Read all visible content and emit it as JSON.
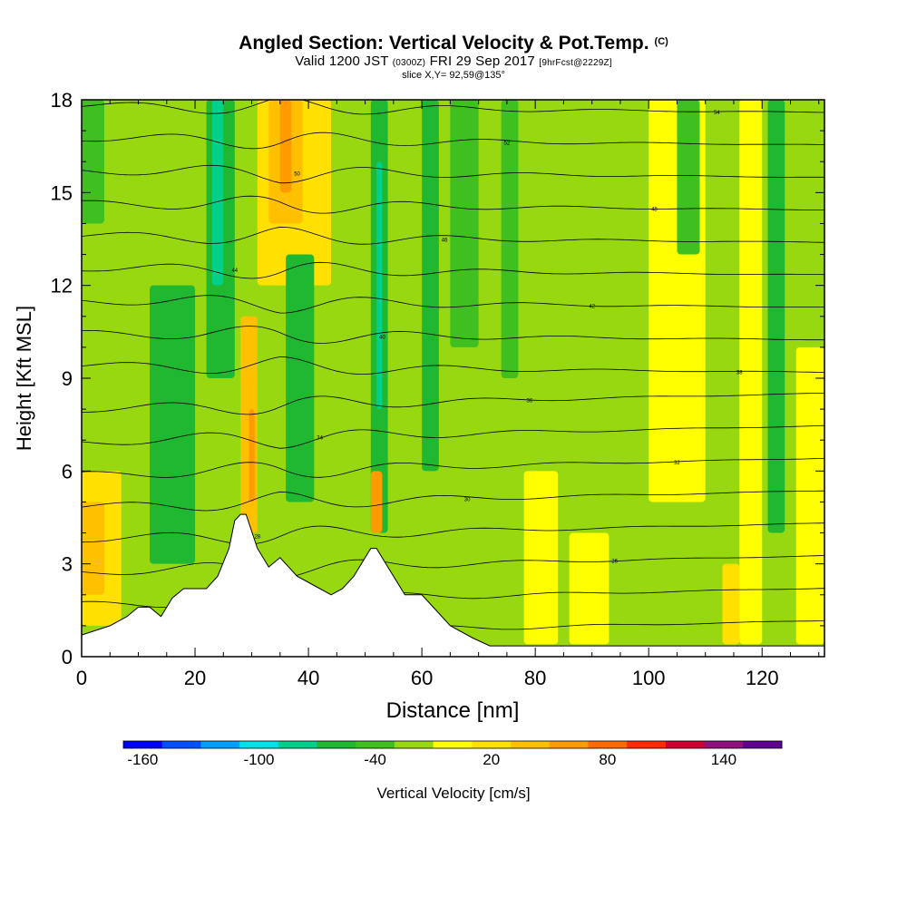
{
  "header": {
    "title": "Angled Section: Vertical Velocity & Pot.Temp.",
    "title_suffix": "(C)",
    "valid_prefix": "Valid 1200 JST",
    "valid_utc": "(0300Z)",
    "valid_date": "FRI 29 Sep 2017",
    "forecast": "[9hrFcst@2229Z]",
    "slice": "slice X,Y= 92,59@135°"
  },
  "chart_data": {
    "type": "heatmap",
    "xlabel": "Distance [nm]",
    "ylabel": "Height [Kft MSL]",
    "xlim": [
      0,
      131
    ],
    "ylim": [
      0,
      18
    ],
    "x_ticks": [
      "0",
      "20",
      "40",
      "60",
      "80",
      "100",
      "120"
    ],
    "y_ticks": [
      "0",
      "3",
      "6",
      "9",
      "12",
      "15",
      "18"
    ],
    "colorbar": {
      "label": "Vertical Velocity [cm/s]",
      "range": [
        -170,
        170
      ],
      "step": 20,
      "tick_labels": [
        "-160",
        "-100",
        "-40",
        "20",
        "80",
        "140"
      ],
      "tick_values": [
        -160,
        -100,
        -40,
        20,
        80,
        140
      ],
      "colors": [
        "#0000ff",
        "#0050ff",
        "#00a0ff",
        "#00e0e8",
        "#00d08a",
        "#20b830",
        "#40c020",
        "#98d810",
        "#ffff00",
        "#ffe000",
        "#ffc000",
        "#ff9a00",
        "#ff6a00",
        "#ff2a00",
        "#d00030",
        "#901080",
        "#600090"
      ]
    },
    "terrain_kft": [
      [
        0,
        0.7
      ],
      [
        5,
        1.0
      ],
      [
        8,
        1.3
      ],
      [
        10,
        1.6
      ],
      [
        12,
        1.6
      ],
      [
        14,
        1.3
      ],
      [
        16,
        1.9
      ],
      [
        18,
        2.2
      ],
      [
        22,
        2.2
      ],
      [
        24,
        2.6
      ],
      [
        26,
        3.5
      ],
      [
        27,
        4.4
      ],
      [
        28,
        4.6
      ],
      [
        29,
        4.6
      ],
      [
        31,
        3.5
      ],
      [
        33,
        2.9
      ],
      [
        35,
        3.2
      ],
      [
        38,
        2.6
      ],
      [
        41,
        2.3
      ],
      [
        44,
        2.0
      ],
      [
        46,
        2.2
      ],
      [
        48,
        2.6
      ],
      [
        50,
        3.2
      ],
      [
        51,
        3.5
      ],
      [
        52,
        3.5
      ],
      [
        54,
        2.9
      ],
      [
        57,
        2.0
      ],
      [
        60,
        2.0
      ],
      [
        62,
        1.6
      ],
      [
        65,
        1.0
      ],
      [
        69,
        0.6
      ],
      [
        72,
        0.35
      ],
      [
        131,
        0.35
      ]
    ],
    "isentropes_c": [
      "22",
      "24",
      "26",
      "28",
      "30",
      "32",
      "34",
      "36",
      "38",
      "40",
      "42",
      "44",
      "46",
      "48",
      "50",
      "52",
      "54"
    ]
  }
}
